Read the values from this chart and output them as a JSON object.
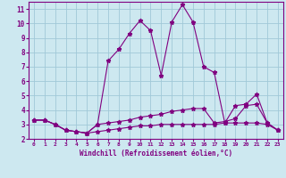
{
  "xlabel": "Windchill (Refroidissement éolien,°C)",
  "bg_color": "#cde8f0",
  "grid_color": "#a0c8d8",
  "line_color": "#800080",
  "xlim": [
    -0.5,
    23.5
  ],
  "ylim": [
    2.0,
    11.5
  ],
  "x_ticks": [
    0,
    1,
    2,
    3,
    4,
    5,
    6,
    7,
    8,
    9,
    10,
    11,
    12,
    13,
    14,
    15,
    16,
    17,
    18,
    19,
    20,
    21,
    22,
    23
  ],
  "y_ticks": [
    2,
    3,
    4,
    5,
    6,
    7,
    8,
    9,
    10,
    11
  ],
  "series1_x": [
    0,
    1,
    2,
    3,
    4,
    5,
    6,
    7,
    8,
    9,
    10,
    11,
    12,
    13,
    14,
    15,
    16,
    17,
    18,
    19,
    20,
    21,
    22,
    23
  ],
  "series1_y": [
    3.3,
    3.3,
    3.0,
    2.6,
    2.5,
    2.4,
    2.5,
    2.6,
    2.7,
    2.8,
    2.9,
    2.9,
    3.0,
    3.0,
    3.0,
    3.0,
    3.0,
    3.0,
    3.1,
    3.1,
    3.1,
    3.1,
    3.0,
    2.6
  ],
  "series2_x": [
    0,
    1,
    2,
    3,
    4,
    5,
    6,
    7,
    8,
    9,
    10,
    11,
    12,
    13,
    14,
    15,
    16,
    17,
    18,
    19,
    20,
    21,
    22,
    23
  ],
  "series2_y": [
    3.3,
    3.3,
    3.0,
    2.6,
    2.5,
    2.4,
    3.0,
    3.1,
    3.2,
    3.3,
    3.5,
    3.6,
    3.7,
    3.9,
    4.0,
    4.1,
    4.1,
    3.1,
    3.2,
    3.4,
    4.3,
    4.4,
    3.1,
    2.6
  ],
  "series3_x": [
    0,
    1,
    2,
    3,
    4,
    5,
    6,
    7,
    8,
    9,
    10,
    11,
    12,
    13,
    14,
    15,
    16,
    17,
    18,
    19,
    20,
    21,
    22,
    23
  ],
  "series3_y": [
    3.3,
    3.3,
    3.0,
    2.6,
    2.5,
    2.4,
    3.0,
    7.4,
    8.2,
    9.3,
    10.2,
    9.5,
    6.4,
    10.1,
    11.3,
    10.1,
    7.0,
    6.6,
    3.1,
    4.3,
    4.4,
    5.1,
    3.1,
    2.6
  ]
}
